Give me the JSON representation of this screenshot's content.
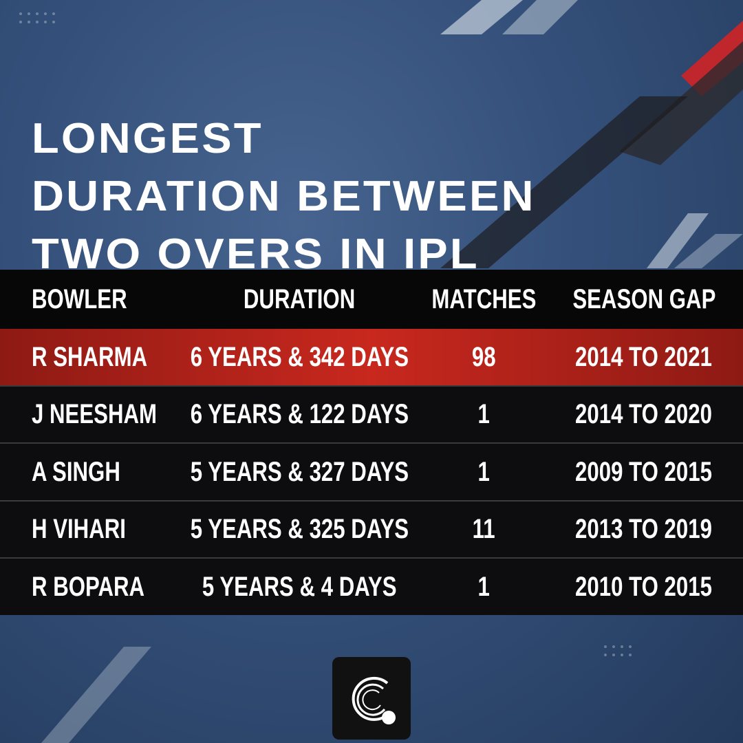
{
  "title": [
    "LONGEST",
    "DURATION BETWEEN",
    "TWO OVERS IN IPL"
  ],
  "table": {
    "headers": [
      "BOWLER",
      "DURATION",
      "MATCHES",
      "SEASON GAP"
    ],
    "rows": [
      [
        "R SHARMA",
        "6 YEARS & 342 DAYS",
        98,
        "2014 TO 2021"
      ],
      [
        "J NEESHAM",
        "6 YEARS & 122 DAYS",
        1,
        "2014 TO 2020"
      ],
      [
        "A SINGH",
        "5 YEARS & 327 DAYS",
        1,
        "2009 TO 2015"
      ],
      [
        "H VIHARI",
        "5 YEARS & 325 DAYS",
        11,
        "2013 TO 2019"
      ],
      [
        "R BOPARA",
        "5 YEARS & 4 DAYS",
        1,
        "2010 TO 2015"
      ]
    ]
  }
}
